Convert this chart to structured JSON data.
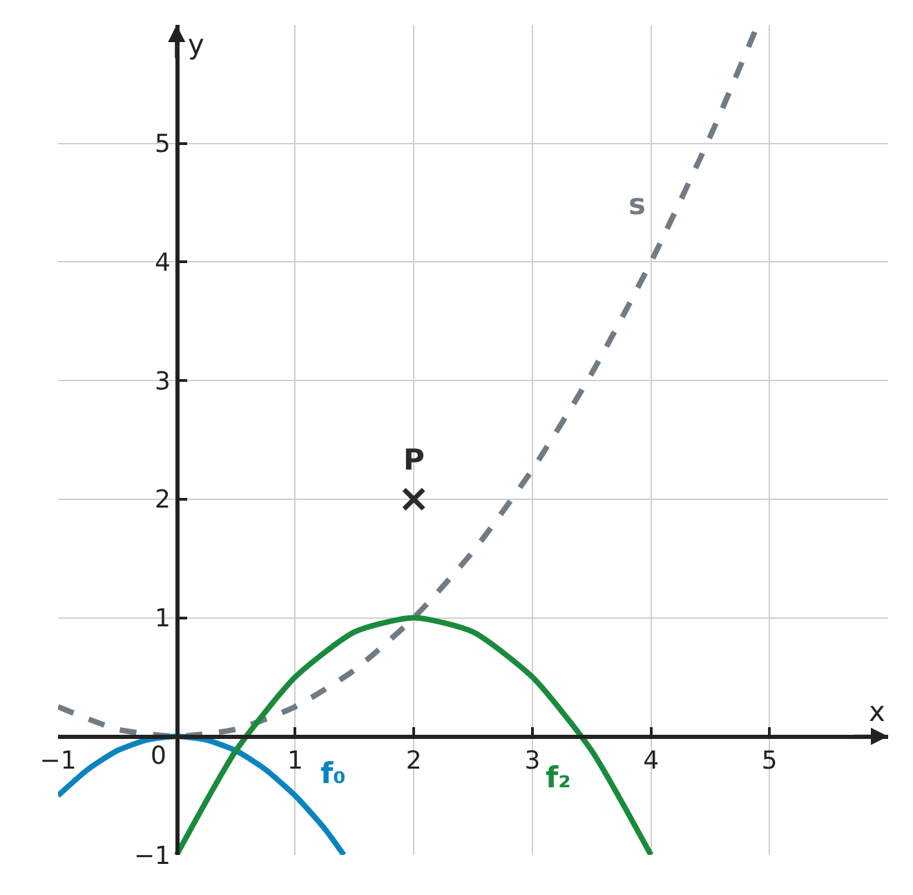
{
  "chart_data": {
    "type": "line",
    "xlabel": "x",
    "ylabel": "y",
    "xlim": [
      -1,
      6
    ],
    "ylim": [
      -1,
      6
    ],
    "xticks": [
      -1,
      0,
      1,
      2,
      3,
      4,
      5
    ],
    "yticks": [
      -1,
      {
        "value": 0,
        "label": null
      },
      1,
      2,
      3,
      4,
      5
    ],
    "grid": true,
    "legend": false,
    "marker": "none",
    "series": [
      {
        "name": "s",
        "color": "#717b85",
        "line_style": "dashed",
        "x": [
          -1,
          -0.5,
          0,
          0.5,
          1,
          1.5,
          2,
          2.5,
          3,
          3.5,
          4,
          4.5,
          4.9
        ],
        "values": [
          0.25,
          0.06,
          0,
          0.06,
          0.25,
          0.56,
          1,
          1.56,
          2.25,
          3.06,
          4,
          5.06,
          6
        ]
      },
      {
        "name": "f₀",
        "color": "#0a84bf",
        "line_style": "solid",
        "x": [
          -1,
          -0.75,
          -0.5,
          -0.25,
          0,
          0.25,
          0.5,
          0.75,
          1,
          1.25,
          1.41
        ],
        "values": [
          -0.5,
          -0.28,
          -0.12,
          -0.03,
          0,
          -0.03,
          -0.12,
          -0.28,
          -0.5,
          -0.78,
          -1
        ]
      },
      {
        "name": "f₂",
        "color": "#1a8a3c",
        "line_style": "solid",
        "x": [
          0,
          0.5,
          1,
          1.5,
          2,
          2.5,
          3,
          3.5,
          4
        ],
        "values": [
          -1,
          -0.12,
          0.5,
          0.88,
          1,
          0.88,
          0.5,
          -0.12,
          -1
        ]
      },
      {
        "name": "P",
        "type": "scatter",
        "marker": "cross",
        "color": "#2b2b2b",
        "x": [
          2
        ],
        "values": [
          2
        ]
      }
    ]
  }
}
